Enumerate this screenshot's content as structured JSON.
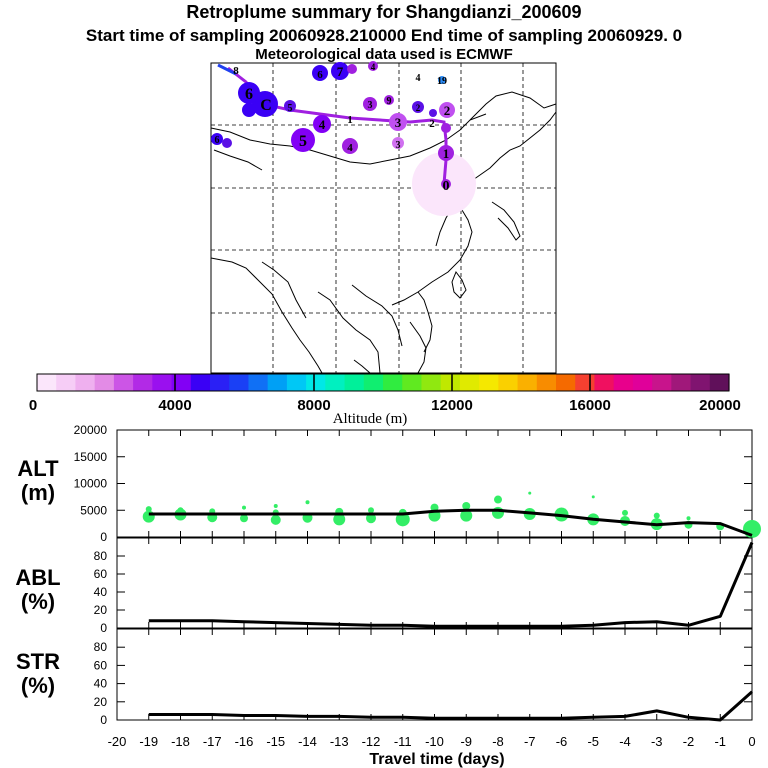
{
  "title": "Retroplume summary for Shangdianzi_200609",
  "subtitle": "Start time of sampling 20060928.210000      End time of sampling 20060929.      0",
  "met_line": "Meteorological data used is ECMWF",
  "map": {
    "cluster_labels": [
      "0",
      "1",
      "2",
      "3",
      "4",
      "5",
      "6",
      "7",
      "C",
      "1",
      "2",
      "3",
      "4",
      "5",
      "6",
      "8",
      "9",
      "4",
      "19",
      "3",
      "2",
      "6",
      "4"
    ]
  },
  "colorbar": {
    "colors": [
      "#fbe6fb",
      "#f6cdf6",
      "#efb0ef",
      "#e38be6",
      "#cc55e6",
      "#b22ae6",
      "#9a10ef",
      "#8200f5",
      "#3a00f5",
      "#2a20f5",
      "#1a40f5",
      "#1070f5",
      "#00a0f5",
      "#00c8f5",
      "#00e8e6",
      "#00f0c0",
      "#00f09a",
      "#10ee70",
      "#30ec40",
      "#60ea20",
      "#90e810",
      "#c0e800",
      "#e0ea00",
      "#f5e800",
      "#fad000",
      "#fab000",
      "#f88c00",
      "#f56a00",
      "#f54030",
      "#f01060",
      "#e8008c",
      "#e0009a",
      "#c8148c",
      "#a0187a",
      "#801470",
      "#60105a"
    ],
    "tick_labels": [
      "0",
      "4000",
      "8000",
      "12000",
      "16000",
      "20000"
    ],
    "xlabel": "Altitude (m)"
  },
  "chart_data": [
    {
      "type": "line",
      "panel": "ALT (m)",
      "ylabel_top": "ALT",
      "ylabel_bottom": "(m)",
      "ylim": [
        0,
        20000
      ],
      "ytick_labels": [
        "0",
        "5000",
        "10000",
        "15000",
        "20000"
      ],
      "x": [
        -19,
        -18,
        -17,
        -16,
        -15,
        -14,
        -13,
        -12,
        -11,
        -10,
        -9,
        -8,
        -7,
        -6,
        -5,
        -4,
        -3,
        -2,
        -1,
        0
      ],
      "values": [
        4300,
        4300,
        4300,
        4300,
        4300,
        4300,
        4300,
        4300,
        4300,
        4800,
        5000,
        5000,
        4500,
        4000,
        3300,
        2800,
        2300,
        2700,
        2500,
        300
      ],
      "scatter_color": "#33ee66",
      "scatter": [
        {
          "x": -19,
          "y": 3800,
          "r": 6
        },
        {
          "x": -19,
          "y": 5200,
          "r": 3
        },
        {
          "x": -18,
          "y": 4200,
          "r": 6
        },
        {
          "x": -18,
          "y": 5000,
          "r": 3
        },
        {
          "x": -17,
          "y": 3700,
          "r": 5
        },
        {
          "x": -17,
          "y": 4800,
          "r": 3
        },
        {
          "x": -16,
          "y": 3500,
          "r": 4
        },
        {
          "x": -16,
          "y": 5500,
          "r": 2
        },
        {
          "x": -15,
          "y": 3200,
          "r": 5
        },
        {
          "x": -15,
          "y": 4600,
          "r": 3
        },
        {
          "x": -15,
          "y": 5800,
          "r": 2
        },
        {
          "x": -14,
          "y": 3600,
          "r": 5
        },
        {
          "x": -14,
          "y": 6500,
          "r": 2
        },
        {
          "x": -13,
          "y": 3300,
          "r": 6
        },
        {
          "x": -13,
          "y": 4700,
          "r": 4
        },
        {
          "x": -12,
          "y": 3500,
          "r": 5
        },
        {
          "x": -12,
          "y": 5000,
          "r": 3
        },
        {
          "x": -11,
          "y": 3300,
          "r": 7
        },
        {
          "x": -11,
          "y": 4500,
          "r": 4
        },
        {
          "x": -10,
          "y": 4000,
          "r": 6
        },
        {
          "x": -10,
          "y": 5500,
          "r": 4
        },
        {
          "x": -9,
          "y": 4000,
          "r": 6
        },
        {
          "x": -9,
          "y": 5800,
          "r": 4
        },
        {
          "x": -8,
          "y": 4500,
          "r": 6
        },
        {
          "x": -8,
          "y": 7000,
          "r": 4
        },
        {
          "x": -7,
          "y": 4300,
          "r": 6
        },
        {
          "x": -7,
          "y": 8200,
          "r": 1.5
        },
        {
          "x": -6,
          "y": 4200,
          "r": 7
        },
        {
          "x": -5,
          "y": 3300,
          "r": 6
        },
        {
          "x": -5,
          "y": 7500,
          "r": 1.5
        },
        {
          "x": -4,
          "y": 3000,
          "r": 5
        },
        {
          "x": -4,
          "y": 4500,
          "r": 3
        },
        {
          "x": -3,
          "y": 2400,
          "r": 6
        },
        {
          "x": -3,
          "y": 4000,
          "r": 3
        },
        {
          "x": -2,
          "y": 2300,
          "r": 4
        },
        {
          "x": -2,
          "y": 3500,
          "r": 2
        },
        {
          "x": -1,
          "y": 2000,
          "r": 4
        },
        {
          "x": 0,
          "y": 1500,
          "r": 9
        }
      ]
    },
    {
      "type": "line",
      "panel": "ABL (%)",
      "ylabel_top": "ABL",
      "ylabel_bottom": "(%)",
      "ylim": [
        0,
        100
      ],
      "ytick_labels": [
        "0",
        "20",
        "40",
        "60",
        "80"
      ],
      "x": [
        -19,
        -18,
        -17,
        -16,
        -15,
        -14,
        -13,
        -12,
        -11,
        -10,
        -9,
        -8,
        -7,
        -6,
        -5,
        -4,
        -3,
        -2,
        -1,
        0
      ],
      "values": [
        8,
        8,
        8,
        7,
        6,
        5,
        4,
        3,
        3,
        2,
        2,
        2,
        2,
        2,
        3,
        6,
        7,
        3,
        13,
        95
      ]
    },
    {
      "type": "line",
      "panel": "STR (%)",
      "ylabel_top": "STR",
      "ylabel_bottom": "(%)",
      "ylim": [
        0,
        100
      ],
      "ytick_labels": [
        "0",
        "20",
        "40",
        "60",
        "80"
      ],
      "x": [
        -19,
        -18,
        -17,
        -16,
        -15,
        -14,
        -13,
        -12,
        -11,
        -10,
        -9,
        -8,
        -7,
        -6,
        -5,
        -4,
        -3,
        -2,
        -1,
        0
      ],
      "values": [
        6,
        6,
        6,
        5,
        5,
        4,
        4,
        3,
        3,
        2,
        2,
        2,
        2,
        2,
        3,
        4,
        10,
        3,
        0,
        31
      ],
      "xlabel": "Travel time (days)",
      "xtick_labels": [
        "-20",
        "-19",
        "-18",
        "-17",
        "-16",
        "-15",
        "-14",
        "-13",
        "-12",
        "-11",
        "-10",
        "-9",
        "-8",
        "-7",
        "-6",
        "-5",
        "-4",
        "-3",
        "-2",
        "-1",
        "0"
      ]
    }
  ]
}
